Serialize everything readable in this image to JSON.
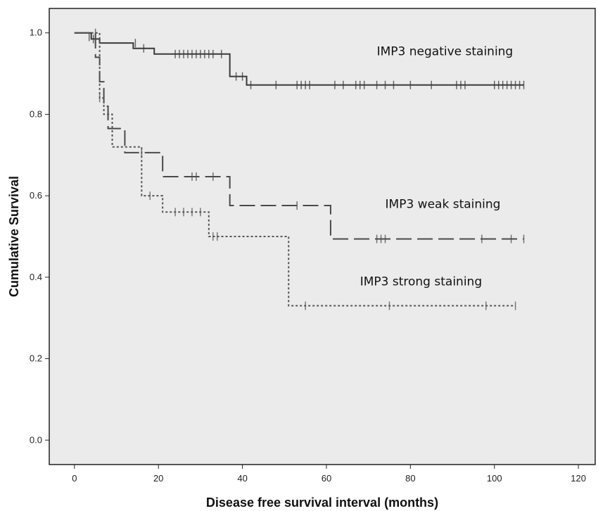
{
  "chart_data": {
    "type": "line",
    "xlabel": "Disease free survival interval (months)",
    "ylabel": "Cumulative Survival",
    "xlim": [
      -6,
      124
    ],
    "ylim": [
      -0.06,
      1.06
    ],
    "xticks": [
      0,
      20,
      40,
      60,
      80,
      100,
      120
    ],
    "yticks": [
      0.0,
      0.2,
      0.4,
      0.6,
      0.8,
      1.0
    ],
    "xtick_labels": [
      "0",
      "20",
      "40",
      "60",
      "80",
      "100",
      "120"
    ],
    "ytick_labels": [
      "0.0",
      "0.2",
      "0.4",
      "0.6",
      "0.8",
      "1.0"
    ],
    "grid": false,
    "plot_background": "#ebebeb",
    "series": [
      {
        "name": "IMP3 negative staining",
        "color": "#3a3a3a",
        "dash": "solid",
        "steps": [
          [
            0,
            1.0
          ],
          [
            4,
            0.985
          ],
          [
            6,
            0.975
          ],
          [
            14,
            0.962
          ],
          [
            19,
            0.948
          ],
          [
            37,
            0.893
          ],
          [
            41,
            0.872
          ],
          [
            107,
            0.872
          ]
        ],
        "censored": [
          [
            3.5,
            0.99
          ],
          [
            4.5,
            0.985
          ],
          [
            14.5,
            0.975
          ],
          [
            16.5,
            0.962
          ],
          [
            24,
            0.948
          ],
          [
            25,
            0.948
          ],
          [
            26,
            0.948
          ],
          [
            27,
            0.948
          ],
          [
            28,
            0.948
          ],
          [
            29,
            0.948
          ],
          [
            30,
            0.948
          ],
          [
            31,
            0.948
          ],
          [
            32,
            0.948
          ],
          [
            33,
            0.948
          ],
          [
            35,
            0.948
          ],
          [
            38.5,
            0.893
          ],
          [
            40,
            0.893
          ],
          [
            42,
            0.872
          ],
          [
            48,
            0.872
          ],
          [
            53,
            0.872
          ],
          [
            54,
            0.872
          ],
          [
            55,
            0.872
          ],
          [
            56,
            0.872
          ],
          [
            62,
            0.872
          ],
          [
            64,
            0.872
          ],
          [
            67,
            0.872
          ],
          [
            68,
            0.872
          ],
          [
            69,
            0.872
          ],
          [
            72,
            0.872
          ],
          [
            74,
            0.872
          ],
          [
            76,
            0.872
          ],
          [
            80,
            0.872
          ],
          [
            85,
            0.872
          ],
          [
            91,
            0.872
          ],
          [
            92,
            0.872
          ],
          [
            93,
            0.872
          ],
          [
            100,
            0.872
          ],
          [
            101,
            0.872
          ],
          [
            102,
            0.872
          ],
          [
            103,
            0.872
          ],
          [
            104,
            0.872
          ],
          [
            105,
            0.872
          ],
          [
            106,
            0.872
          ],
          [
            107,
            0.872
          ]
        ]
      },
      {
        "name": "IMP3 weak staining",
        "color": "#4a4a4a",
        "dash": "long-dash",
        "steps": [
          [
            0,
            1.0
          ],
          [
            5,
            0.94
          ],
          [
            6,
            0.88
          ],
          [
            7,
            0.82
          ],
          [
            8,
            0.765
          ],
          [
            12,
            0.706
          ],
          [
            21,
            0.647
          ],
          [
            37,
            0.576
          ],
          [
            61,
            0.494
          ],
          [
            107,
            0.494
          ]
        ],
        "censored": [
          [
            5,
            1.0
          ],
          [
            16,
            0.706
          ],
          [
            28,
            0.647
          ],
          [
            29,
            0.647
          ],
          [
            33,
            0.647
          ],
          [
            53,
            0.576
          ],
          [
            72,
            0.494
          ],
          [
            73,
            0.494
          ],
          [
            74,
            0.494
          ],
          [
            97,
            0.494
          ],
          [
            104,
            0.494
          ],
          [
            107,
            0.494
          ]
        ]
      },
      {
        "name": "IMP3 strong staining",
        "color": "#555555",
        "dash": "dotted",
        "steps": [
          [
            0,
            1.0
          ],
          [
            6,
            0.84
          ],
          [
            7,
            0.8
          ],
          [
            9,
            0.72
          ],
          [
            16,
            0.6
          ],
          [
            21,
            0.56
          ],
          [
            32,
            0.5
          ],
          [
            51,
            0.33
          ],
          [
            105,
            0.33
          ]
        ],
        "censored": [
          [
            6,
            0.84
          ],
          [
            18,
            0.6
          ],
          [
            24,
            0.56
          ],
          [
            26,
            0.56
          ],
          [
            28,
            0.56
          ],
          [
            30,
            0.56
          ],
          [
            33,
            0.5
          ],
          [
            34,
            0.5
          ],
          [
            55,
            0.33
          ],
          [
            75,
            0.33
          ],
          [
            98,
            0.33
          ],
          [
            105,
            0.33
          ]
        ]
      }
    ],
    "annotations": [
      {
        "text": "IMP3 negative staining",
        "x": 72,
        "y": 0.945
      },
      {
        "text": "IMP3 weak staining",
        "x": 74,
        "y": 0.57
      },
      {
        "text": "IMP3 strong staining",
        "x": 68,
        "y": 0.38
      }
    ]
  }
}
